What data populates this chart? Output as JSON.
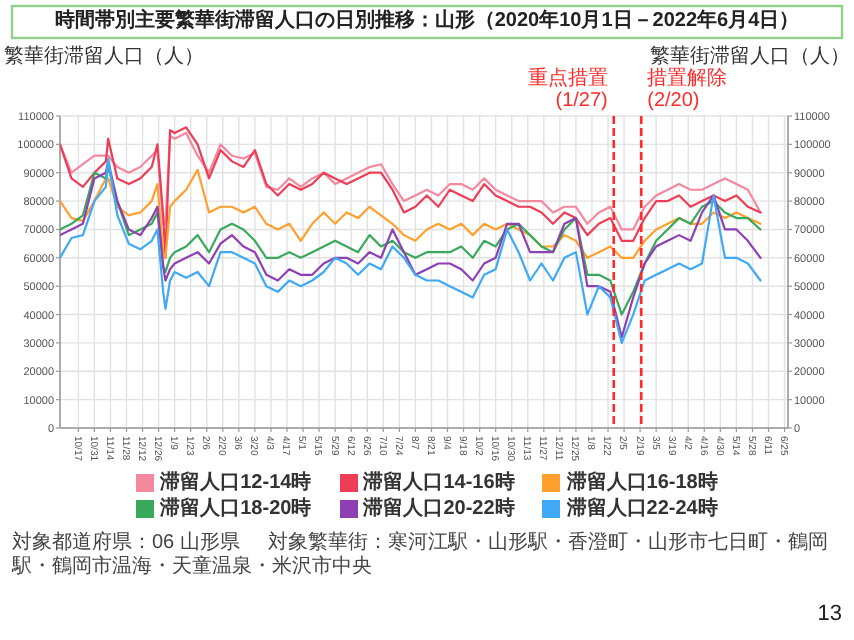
{
  "chart_data": {
    "type": "line",
    "title": "時間帯別主要繁華街滞留人口の日別推移：山形（2020年10月1日－2022年6月4日）",
    "ylabel": "繁華街滞留人口（人）",
    "y2label": "繁華街滞留人口（人）",
    "x": [
      "2020-10-01",
      "2020-10-11",
      "2020-10-21",
      "2020-10-31",
      "2020-11-10",
      "2020-11-12",
      "2020-11-20",
      "2020-11-30",
      "2020-12-10",
      "2020-12-20",
      "2020-12-25",
      "2020-12-30",
      "2021-01-01",
      "2021-01-05",
      "2021-01-09",
      "2021-01-19",
      "2021-01-29",
      "2021-02-08",
      "2021-02-18",
      "2021-02-28",
      "2021-03-10",
      "2021-03-20",
      "2021-03-30",
      "2021-04-09",
      "2021-04-19",
      "2021-04-29",
      "2021-05-09",
      "2021-05-19",
      "2021-05-29",
      "2021-06-08",
      "2021-06-18",
      "2021-06-28",
      "2021-07-08",
      "2021-07-18",
      "2021-07-28",
      "2021-08-07",
      "2021-08-17",
      "2021-08-27",
      "2021-09-06",
      "2021-09-16",
      "2021-09-26",
      "2021-10-06",
      "2021-10-16",
      "2021-10-26",
      "2021-11-05",
      "2021-11-15",
      "2021-11-25",
      "2021-12-05",
      "2021-12-15",
      "2021-12-25",
      "2022-01-04",
      "2022-01-14",
      "2022-01-24",
      "2022-02-03",
      "2022-02-13",
      "2022-02-23",
      "2022-03-05",
      "2022-03-15",
      "2022-03-25",
      "2022-04-04",
      "2022-04-14",
      "2022-04-24",
      "2022-05-04",
      "2022-05-14",
      "2022-05-24",
      "2022-06-04"
    ],
    "series": [
      {
        "name": "滞留人口12-14時",
        "color": "#f4889f",
        "values": [
          100000,
          90000,
          93000,
          96000,
          96000,
          96000,
          92000,
          90000,
          92000,
          96000,
          98000,
          72000,
          72000,
          103000,
          102000,
          104000,
          96000,
          90000,
          100000,
          96000,
          95000,
          97000,
          85000,
          84000,
          88000,
          85000,
          88000,
          90000,
          86000,
          88000,
          90000,
          92000,
          93000,
          86000,
          80000,
          82000,
          84000,
          82000,
          86000,
          86000,
          84000,
          88000,
          84000,
          82000,
          80000,
          80000,
          80000,
          76000,
          78000,
          78000,
          72000,
          76000,
          78000,
          70000,
          70000,
          78000,
          82000,
          84000,
          86000,
          84000,
          84000,
          86000,
          88000,
          86000,
          84000,
          76000
        ]
      },
      {
        "name": "滞留人口14-16時",
        "color": "#ee3d57",
        "values": [
          100000,
          88000,
          85000,
          90000,
          94000,
          102000,
          88000,
          86000,
          88000,
          92000,
          100000,
          75000,
          60000,
          105000,
          104000,
          106000,
          100000,
          88000,
          98000,
          94000,
          92000,
          98000,
          86000,
          82000,
          86000,
          84000,
          86000,
          90000,
          88000,
          86000,
          88000,
          90000,
          90000,
          84000,
          76000,
          78000,
          82000,
          78000,
          84000,
          82000,
          80000,
          86000,
          82000,
          80000,
          78000,
          78000,
          76000,
          72000,
          76000,
          74000,
          68000,
          72000,
          74000,
          66000,
          66000,
          74000,
          80000,
          80000,
          82000,
          78000,
          80000,
          82000,
          80000,
          82000,
          78000,
          76000
        ]
      },
      {
        "name": "滞留人口16-18時",
        "color": "#ff9f2e",
        "values": [
          80000,
          74000,
          73000,
          80000,
          88000,
          88000,
          78000,
          75000,
          76000,
          80000,
          86000,
          62000,
          60000,
          78000,
          80000,
          84000,
          91000,
          76000,
          78000,
          78000,
          76000,
          78000,
          72000,
          70000,
          72000,
          66000,
          72000,
          76000,
          72000,
          76000,
          74000,
          78000,
          75000,
          72000,
          68000,
          66000,
          70000,
          72000,
          70000,
          72000,
          68000,
          72000,
          70000,
          72000,
          70000,
          68000,
          64000,
          64000,
          68000,
          66000,
          60000,
          62000,
          64000,
          60000,
          60000,
          66000,
          70000,
          72000,
          74000,
          72000,
          72000,
          76000,
          74000,
          76000,
          74000,
          72000
        ]
      },
      {
        "name": "滞留人口18-20時",
        "color": "#3aa95c",
        "values": [
          70000,
          72000,
          75000,
          90000,
          88000,
          92000,
          80000,
          68000,
          70000,
          72000,
          76000,
          57000,
          55000,
          60000,
          62000,
          64000,
          68000,
          62000,
          70000,
          72000,
          70000,
          66000,
          60000,
          60000,
          62000,
          60000,
          62000,
          64000,
          66000,
          64000,
          62000,
          68000,
          64000,
          66000,
          62000,
          60000,
          62000,
          62000,
          62000,
          64000,
          60000,
          66000,
          64000,
          70000,
          72000,
          68000,
          64000,
          62000,
          70000,
          74000,
          54000,
          54000,
          52000,
          40000,
          48000,
          58000,
          66000,
          70000,
          74000,
          72000,
          78000,
          80000,
          76000,
          74000,
          74000,
          70000
        ]
      },
      {
        "name": "滞留人口20-22時",
        "color": "#8e3fb3",
        "values": [
          68000,
          70000,
          72000,
          88000,
          90000,
          94000,
          80000,
          70000,
          68000,
          74000,
          78000,
          57000,
          52000,
          56000,
          58000,
          60000,
          62000,
          58000,
          65000,
          68000,
          64000,
          62000,
          54000,
          52000,
          56000,
          54000,
          54000,
          58000,
          60000,
          60000,
          58000,
          62000,
          60000,
          70000,
          62000,
          54000,
          56000,
          58000,
          58000,
          56000,
          52000,
          58000,
          60000,
          72000,
          72000,
          62000,
          62000,
          62000,
          72000,
          74000,
          50000,
          50000,
          48000,
          32000,
          46000,
          58000,
          64000,
          66000,
          68000,
          66000,
          76000,
          82000,
          70000,
          70000,
          66000,
          60000
        ]
      },
      {
        "name": "滞留人口22-24時",
        "color": "#3fa9f5",
        "values": [
          60000,
          67000,
          68000,
          80000,
          85000,
          95000,
          75000,
          65000,
          63000,
          66000,
          70000,
          48000,
          42000,
          52000,
          55000,
          53000,
          55000,
          50000,
          62000,
          62000,
          60000,
          58000,
          50000,
          48000,
          52000,
          50000,
          52000,
          55000,
          60000,
          58000,
          54000,
          58000,
          56000,
          64000,
          60000,
          54000,
          52000,
          52000,
          50000,
          48000,
          46000,
          54000,
          56000,
          70000,
          62000,
          52000,
          58000,
          52000,
          60000,
          62000,
          40000,
          50000,
          46000,
          30000,
          40000,
          52000,
          54000,
          56000,
          58000,
          56000,
          58000,
          82000,
          60000,
          60000,
          58000,
          52000
        ]
      }
    ],
    "xlim": [
      "2020-10-01",
      "2022-06-28"
    ],
    "xticks": [
      {
        "value": "2020-10-17",
        "label": "10/17"
      },
      {
        "value": "2020-10-31",
        "label": "10/31"
      },
      {
        "value": "2020-11-14",
        "label": "11/14"
      },
      {
        "value": "2020-11-28",
        "label": "11/28"
      },
      {
        "value": "2020-12-12",
        "label": "12/12"
      },
      {
        "value": "2020-12-26",
        "label": "12/26"
      },
      {
        "value": "2021-01-09",
        "label": "1/9"
      },
      {
        "value": "2021-01-23",
        "label": "1/23"
      },
      {
        "value": "2021-02-06",
        "label": "2/6"
      },
      {
        "value": "2021-02-20",
        "label": "2/20"
      },
      {
        "value": "2021-03-06",
        "label": "3/6"
      },
      {
        "value": "2021-03-20",
        "label": "3/20"
      },
      {
        "value": "2021-04-03",
        "label": "4/3"
      },
      {
        "value": "2021-04-17",
        "label": "4/17"
      },
      {
        "value": "2021-05-01",
        "label": "5/1"
      },
      {
        "value": "2021-05-15",
        "label": "5/15"
      },
      {
        "value": "2021-05-29",
        "label": "5/29"
      },
      {
        "value": "2021-06-12",
        "label": "6/12"
      },
      {
        "value": "2021-06-26",
        "label": "6/26"
      },
      {
        "value": "2021-07-10",
        "label": "7/10"
      },
      {
        "value": "2021-07-24",
        "label": "7/24"
      },
      {
        "value": "2021-08-07",
        "label": "8/7"
      },
      {
        "value": "2021-08-21",
        "label": "8/21"
      },
      {
        "value": "2021-09-04",
        "label": "9/4"
      },
      {
        "value": "2021-09-18",
        "label": "9/18"
      },
      {
        "value": "2021-10-02",
        "label": "10/2"
      },
      {
        "value": "2021-10-16",
        "label": "10/16"
      },
      {
        "value": "2021-10-30",
        "label": "10/30"
      },
      {
        "value": "2021-11-13",
        "label": "11/13"
      },
      {
        "value": "2021-11-27",
        "label": "11/27"
      },
      {
        "value": "2021-12-11",
        "label": "12/11"
      },
      {
        "value": "2021-12-25",
        "label": "12/25"
      },
      {
        "value": "2022-01-08",
        "label": "1/8"
      },
      {
        "value": "2022-01-22",
        "label": "1/22"
      },
      {
        "value": "2022-02-05",
        "label": "2/5"
      },
      {
        "value": "2022-02-19",
        "label": "2/19"
      },
      {
        "value": "2022-03-05",
        "label": "3/5"
      },
      {
        "value": "2022-03-19",
        "label": "3/19"
      },
      {
        "value": "2022-04-02",
        "label": "4/2"
      },
      {
        "value": "2022-04-16",
        "label": "4/16"
      },
      {
        "value": "2022-04-30",
        "label": "4/30"
      },
      {
        "value": "2022-05-14",
        "label": "5/14"
      },
      {
        "value": "2022-05-28",
        "label": "5/28"
      },
      {
        "value": "2022-06-11",
        "label": "6/11"
      },
      {
        "value": "2022-06-25",
        "label": "6/25"
      }
    ],
    "ylim": [
      0,
      110000
    ],
    "yticks": [
      0,
      10000,
      20000,
      30000,
      40000,
      50000,
      60000,
      70000,
      80000,
      90000,
      100000,
      110000
    ],
    "y2lim": [
      0,
      110000
    ],
    "y2ticks": [
      0,
      10000,
      20000,
      30000,
      40000,
      50000,
      60000,
      70000,
      80000,
      90000,
      100000,
      110000
    ],
    "ref_lines": [
      {
        "axis": "x",
        "value": "2022-01-27",
        "label": "重点措置(1/27)",
        "color": "#ff2a2a",
        "line_style": "dashed"
      },
      {
        "axis": "x",
        "value": "2022-02-20",
        "label": "措置解除(2/20)",
        "color": "#ff2a2a",
        "line_style": "dashed"
      }
    ],
    "grid": true,
    "legend": "bottom",
    "marker": "none",
    "line_style": "solid",
    "annotations": [
      "対象都道府県：06 山形県",
      "対象繁華街：寒河江駅・山形駅・香澄町・山形市七日町・鶴岡駅・鶴岡市温海・天童温泉・米沢市中央",
      "13"
    ]
  }
}
